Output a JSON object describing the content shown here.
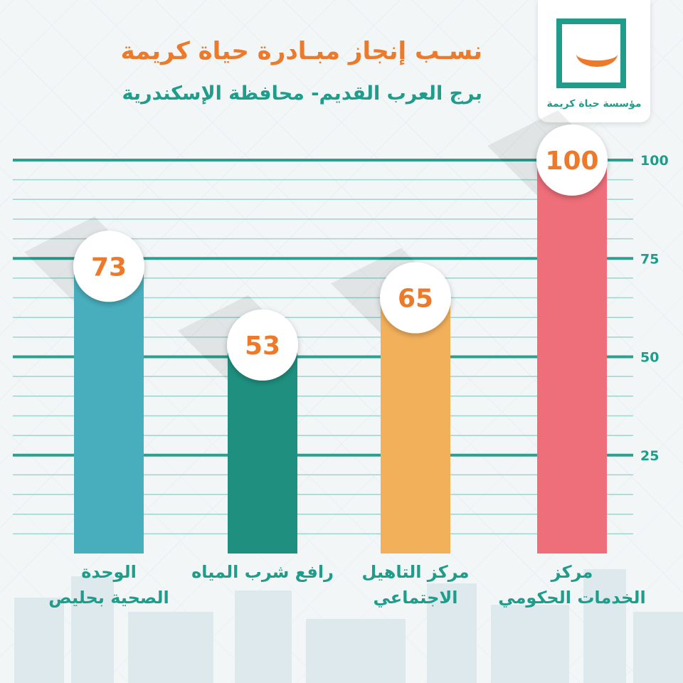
{
  "header": {
    "title": "نسـب إنجاز مبـادرة حياة كريمة",
    "subtitle": "برج العرب القديم- محافظة الإسكندرية"
  },
  "logo": {
    "text": "مؤسسة حياة كريمة"
  },
  "colors": {
    "orange": "#ec7a2a",
    "teal": "#1f9c8a"
  },
  "chart_data": {
    "type": "bar",
    "categories": [
      [
        "الوحدة",
        "الصحية بحليص"
      ],
      [
        "رافع شرب المياه"
      ],
      [
        "مركز التاهيل",
        "الاجتماعي"
      ],
      [
        "مركز",
        "الخدمات الحكومي"
      ]
    ],
    "values": [
      73,
      53,
      65,
      100
    ],
    "value_labels": [
      "73",
      "53",
      "65",
      "100"
    ],
    "bar_colors": [
      "#48aebd",
      "#1f9080",
      "#f3b05a",
      "#ee6e79"
    ],
    "yticks": [
      "25",
      "50",
      "75",
      "100"
    ],
    "ylim": [
      0,
      100
    ],
    "grid": true
  }
}
